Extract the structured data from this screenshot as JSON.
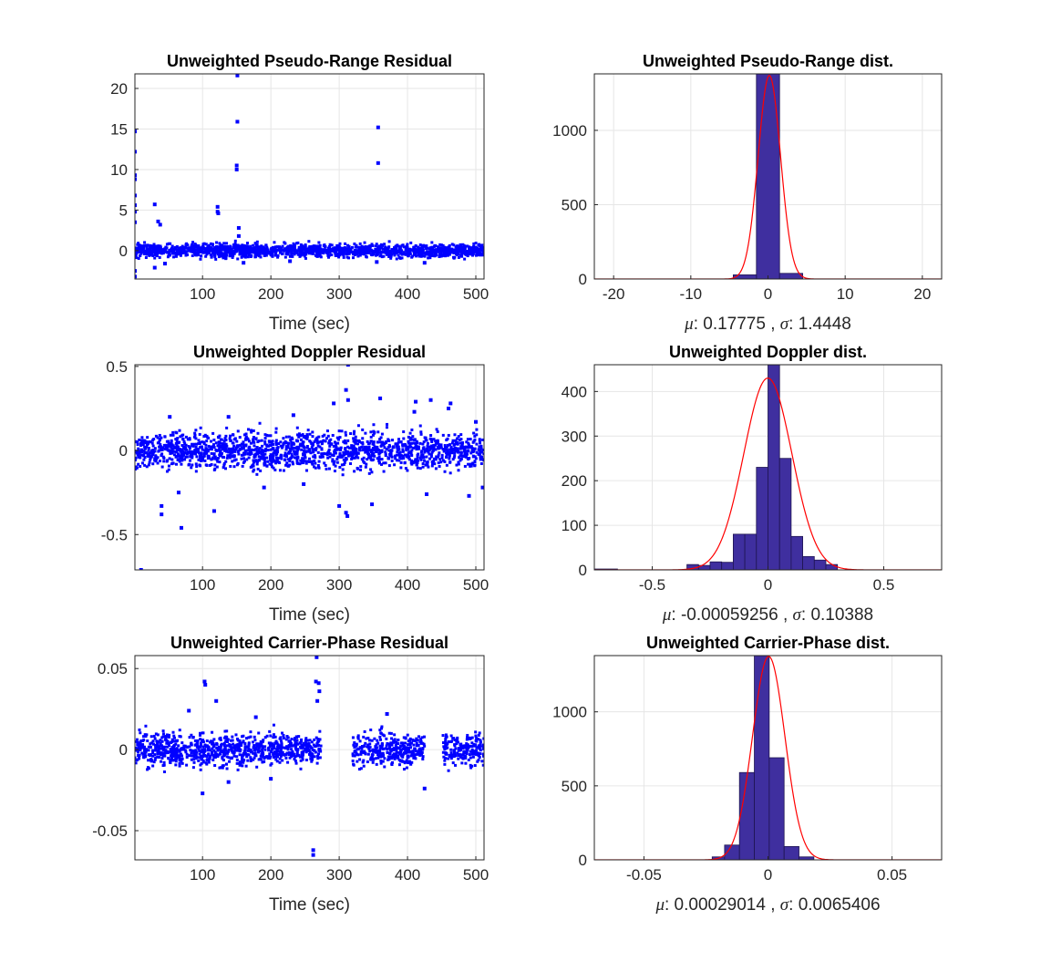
{
  "figure": {
    "background": "#ffffff",
    "scatter_color": "#0000ff",
    "bar_fill": "#3f2f9f",
    "bar_edge": "#1e1450",
    "fit_color": "#ff0000"
  },
  "chart_data": [
    {
      "id": "pr_residual",
      "type": "scatter",
      "title": "Unweighted Pseudo-Range Residual",
      "xlabel": "Time (sec)",
      "ylabel": "",
      "xlim": [
        1,
        512
      ],
      "ylim": [
        -3.5,
        21.8
      ],
      "xticks": [
        100,
        200,
        300,
        400,
        500
      ],
      "yticks": [
        0,
        5,
        10,
        15,
        20
      ],
      "grid": true,
      "noise": {
        "center": 0,
        "half_width": 0.9,
        "gaps": []
      },
      "points": [
        [
          1,
          14.7
        ],
        [
          1,
          12.2
        ],
        [
          1,
          9.3
        ],
        [
          1,
          8.8
        ],
        [
          1,
          6.8
        ],
        [
          1,
          5.6
        ],
        [
          1,
          4.8
        ],
        [
          1,
          3.5
        ],
        [
          1,
          -3.2
        ],
        [
          1,
          -2.5
        ],
        [
          30,
          5.7
        ],
        [
          35,
          3.6
        ],
        [
          38,
          3.2
        ],
        [
          122,
          5.4
        ],
        [
          122,
          4.8
        ],
        [
          123,
          4.6
        ],
        [
          151,
          21.6
        ],
        [
          151,
          15.9
        ],
        [
          150,
          10.5
        ],
        [
          150,
          10.0
        ],
        [
          153,
          2.8
        ],
        [
          153,
          1.8
        ],
        [
          357,
          15.2
        ],
        [
          357,
          10.8
        ],
        [
          30,
          -2.1
        ],
        [
          45,
          -1.6
        ],
        [
          160,
          -1.5
        ],
        [
          228,
          -1.3
        ],
        [
          355,
          -1.4
        ],
        [
          425,
          -1.5
        ]
      ]
    },
    {
      "id": "pr_dist",
      "type": "bar",
      "title": "Unweighted Pseudo-Range dist.",
      "xlabel": "μ: 0.17775 , σ: 1.4448",
      "mu_label": "μ",
      "mu_value": "0.17775",
      "sigma_label": "σ",
      "sigma_value": "1.4448",
      "xlim": [
        -22.5,
        22.5
      ],
      "ylim": [
        0,
        1380
      ],
      "xticks": [
        -20,
        -10,
        0,
        10,
        20
      ],
      "yticks": [
        0,
        500,
        1000
      ],
      "grid": true,
      "bins": [
        [
          -4.5,
          -1.5,
          2
        ],
        [
          -1.5,
          1.5,
          1380
        ],
        [
          1.5,
          4.5,
          38
        ],
        [
          -4.5,
          -1.5,
          28
        ]
      ],
      "fit": {
        "mean": 0.17775,
        "std": 1.4448,
        "peak": 1370
      }
    },
    {
      "id": "dop_residual",
      "type": "scatter",
      "title": "Unweighted Doppler Residual",
      "xlabel": "Time (sec)",
      "ylabel": "",
      "xlim": [
        1,
        512
      ],
      "ylim": [
        -0.71,
        0.51
      ],
      "xticks": [
        100,
        200,
        300,
        400,
        500
      ],
      "yticks": [
        -0.5,
        0,
        0.5
      ],
      "grid": true,
      "noise": {
        "center": 0,
        "half_width": 0.12,
        "gaps": []
      },
      "points": [
        [
          10,
          -0.71
        ],
        [
          69,
          -0.46
        ],
        [
          40,
          -0.33
        ],
        [
          40,
          -0.38
        ],
        [
          117,
          -0.36
        ],
        [
          310,
          -0.37
        ],
        [
          312,
          -0.39
        ],
        [
          300,
          -0.33
        ],
        [
          348,
          -0.32
        ],
        [
          428,
          -0.26
        ],
        [
          490,
          -0.27
        ],
        [
          510,
          -0.22
        ],
        [
          313,
          0.51
        ],
        [
          310,
          0.36
        ],
        [
          360,
          0.31
        ],
        [
          313,
          0.3
        ],
        [
          292,
          0.28
        ],
        [
          434,
          0.3
        ],
        [
          463,
          0.28
        ],
        [
          412,
          0.29
        ],
        [
          52,
          0.2
        ],
        [
          138,
          0.2
        ],
        [
          233,
          0.21
        ],
        [
          460,
          0.25
        ],
        [
          410,
          0.23
        ],
        [
          500,
          0.17
        ],
        [
          190,
          -0.22
        ],
        [
          65,
          -0.25
        ],
        [
          248,
          -0.2
        ]
      ]
    },
    {
      "id": "dop_dist",
      "type": "bar",
      "title": "Unweighted Doppler dist.",
      "xlabel": "μ: -0.00059256 , σ: 0.10388",
      "mu_label": "μ",
      "mu_value": "-0.00059256",
      "sigma_label": "σ",
      "sigma_value": "0.10388",
      "xlim": [
        -0.75,
        0.75
      ],
      "ylim": [
        0,
        460
      ],
      "xticks": [
        -0.5,
        0,
        0.5
      ],
      "yticks": [
        0,
        100,
        200,
        300,
        400
      ],
      "grid": true,
      "bins": [
        [
          -0.75,
          -0.65,
          2
        ],
        [
          -0.35,
          -0.3,
          12
        ],
        [
          -0.3,
          -0.25,
          10
        ],
        [
          -0.25,
          -0.2,
          18
        ],
        [
          -0.2,
          -0.15,
          17
        ],
        [
          -0.15,
          -0.1,
          80
        ],
        [
          -0.1,
          -0.05,
          80
        ],
        [
          -0.05,
          0,
          230
        ],
        [
          0,
          0.05,
          460
        ],
        [
          0.05,
          0.1,
          250
        ],
        [
          0.1,
          0.15,
          75
        ],
        [
          0.15,
          0.2,
          30
        ],
        [
          0.2,
          0.25,
          22
        ],
        [
          0.25,
          0.3,
          12
        ]
      ],
      "fit": {
        "mean": -0.00059256,
        "std": 0.10388,
        "peak": 430
      }
    },
    {
      "id": "cp_residual",
      "type": "scatter",
      "title": "Unweighted Carrier-Phase Residual",
      "xlabel": "Time (sec)",
      "ylabel": "",
      "xlim": [
        1,
        512
      ],
      "ylim": [
        -0.068,
        0.058
      ],
      "xticks": [
        100,
        200,
        300,
        400,
        500
      ],
      "yticks": [
        -0.05,
        0,
        0.05
      ],
      "grid": true,
      "noise": {
        "center": 0,
        "half_width": 0.011,
        "gaps": [
          [
            275,
            320
          ],
          [
            425,
            452
          ]
        ]
      },
      "points": [
        [
          267,
          0.057
        ],
        [
          266,
          0.042
        ],
        [
          270,
          0.041
        ],
        [
          271,
          0.036
        ],
        [
          268,
          0.03
        ],
        [
          103,
          0.042
        ],
        [
          104,
          0.04
        ],
        [
          262,
          -0.065
        ],
        [
          262,
          -0.062
        ],
        [
          100,
          -0.027
        ],
        [
          120,
          0.03
        ],
        [
          370,
          0.022
        ],
        [
          425,
          -0.024
        ],
        [
          138,
          -0.02
        ],
        [
          200,
          -0.018
        ],
        [
          80,
          0.024
        ],
        [
          178,
          0.02
        ]
      ]
    },
    {
      "id": "cp_dist",
      "type": "bar",
      "title": "Unweighted Carrier-Phase dist.",
      "xlabel": "μ: 0.00029014 , σ: 0.0065406",
      "mu_label": "μ",
      "mu_value": "0.00029014",
      "sigma_label": "σ",
      "sigma_value": "0.0065406",
      "xlim": [
        -0.07,
        0.07
      ],
      "ylim": [
        0,
        1380
      ],
      "xticks": [
        -0.05,
        0,
        0.05
      ],
      "yticks": [
        0,
        500,
        1000
      ],
      "grid": true,
      "bins": [
        [
          -0.0225,
          -0.0175,
          20
        ],
        [
          -0.0175,
          -0.0115,
          100
        ],
        [
          -0.0115,
          -0.0055,
          590
        ],
        [
          -0.0055,
          0.0005,
          1380
        ],
        [
          0.0005,
          0.0065,
          690
        ],
        [
          0.0065,
          0.0125,
          90
        ],
        [
          0.0125,
          0.0185,
          20
        ]
      ],
      "fit": {
        "mean": 0.00029014,
        "std": 0.0065406,
        "peak": 1375
      }
    }
  ]
}
